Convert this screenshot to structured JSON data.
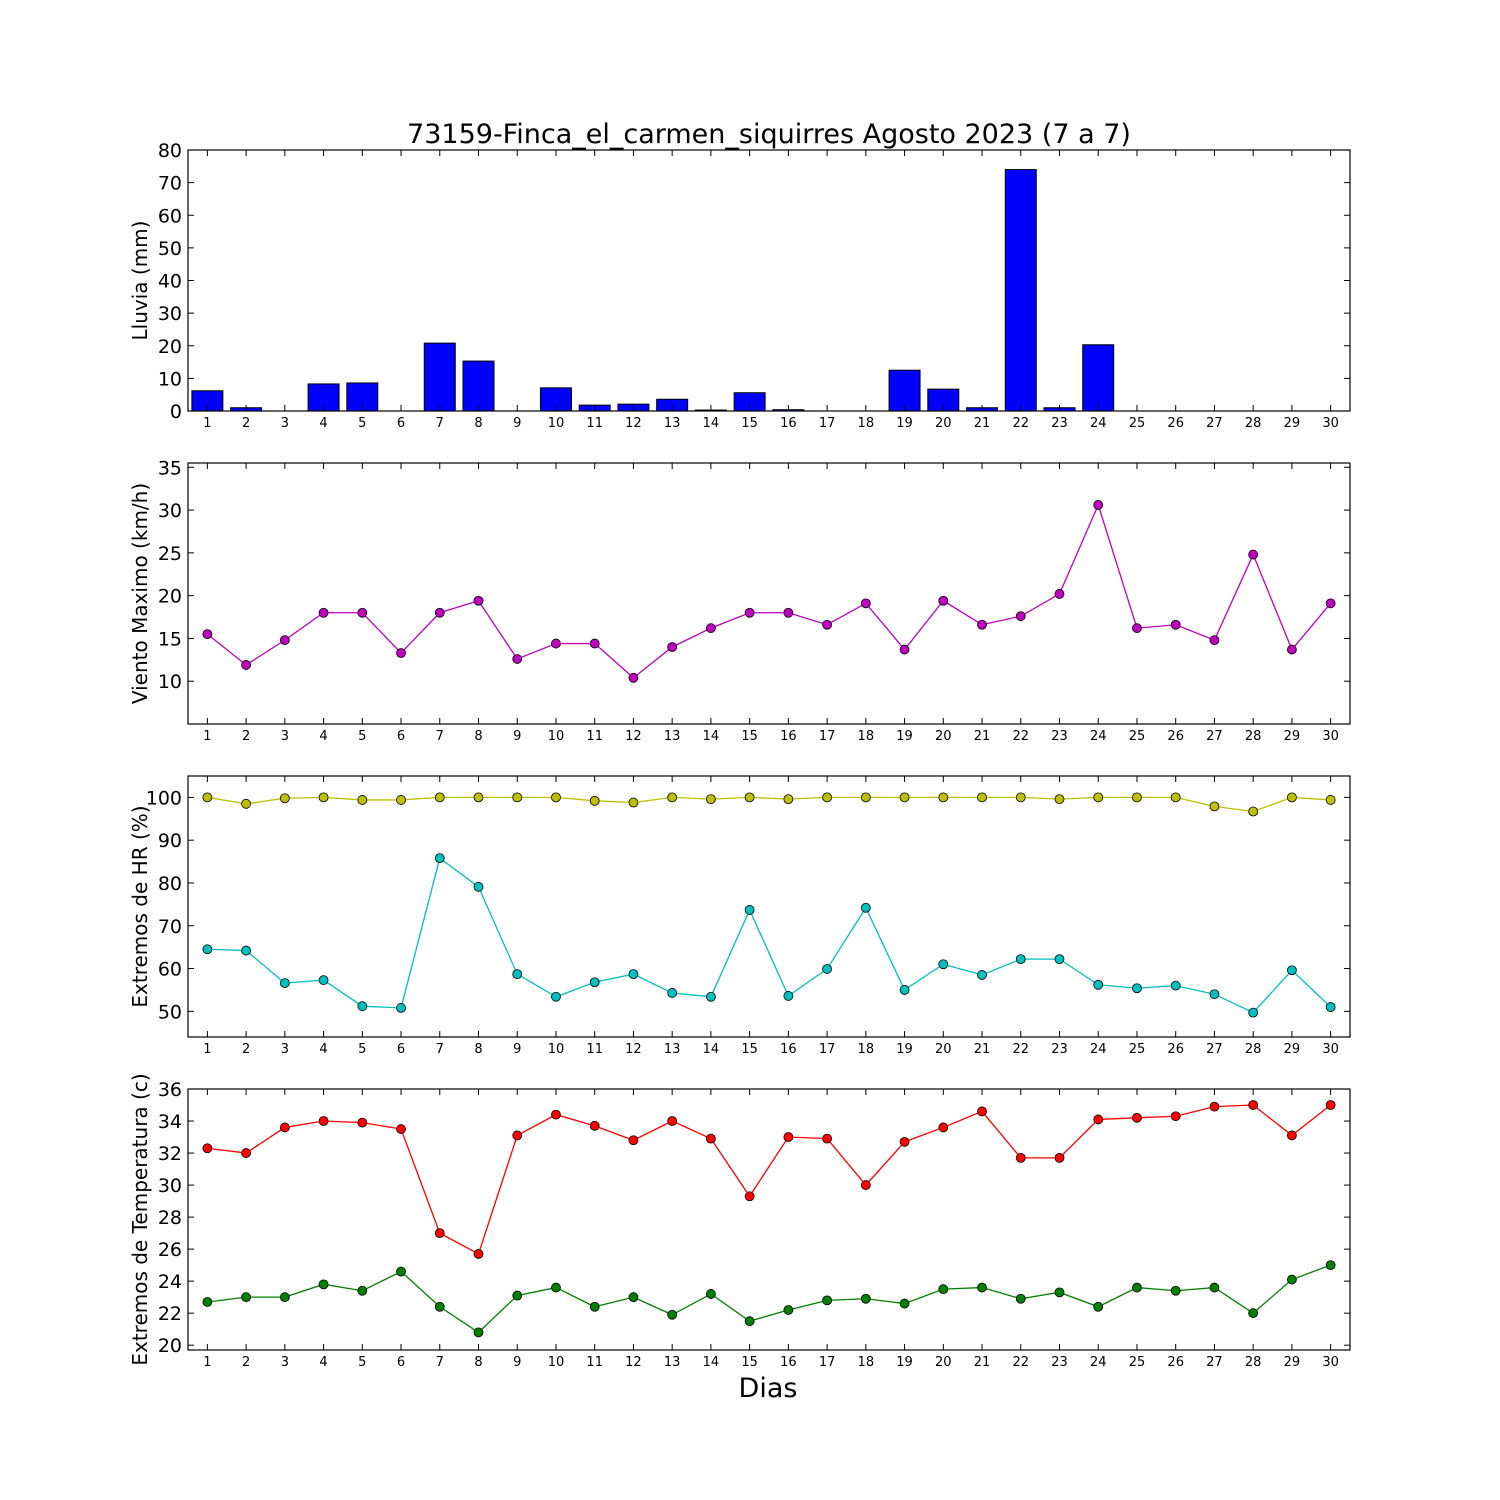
{
  "title": "73159-Finca_el_carmen_siquirres Agosto 2023  (7 a 7)",
  "xlabel": "Dias",
  "chart_data": [
    {
      "type": "bar",
      "ylabel": "Lluvia (mm)",
      "ylim": [
        0,
        80
      ],
      "yticks": [
        0,
        10,
        20,
        30,
        40,
        50,
        60,
        70,
        80
      ],
      "x": [
        1,
        2,
        3,
        4,
        5,
        6,
        7,
        8,
        9,
        10,
        11,
        12,
        13,
        14,
        15,
        16,
        17,
        18,
        19,
        20,
        21,
        22,
        23,
        24,
        25,
        26,
        27,
        28,
        29,
        30
      ],
      "series": [
        {
          "color": "#0000ff",
          "values": [
            6.2,
            1.0,
            0,
            8.3,
            8.6,
            0,
            20.8,
            15.3,
            0,
            7.1,
            1.8,
            2.1,
            3.6,
            0.3,
            5.6,
            0.4,
            0,
            0,
            12.5,
            6.7,
            1.0,
            74.0,
            1.0,
            20.3,
            0,
            0,
            0,
            0,
            0,
            0
          ]
        }
      ]
    },
    {
      "type": "line",
      "ylabel": "Viento Maximo (km/h)",
      "ylim": [
        5,
        35.5
      ],
      "yticks": [
        10,
        15,
        20,
        25,
        30,
        35
      ],
      "x": [
        1,
        2,
        3,
        4,
        5,
        6,
        7,
        8,
        9,
        10,
        11,
        12,
        13,
        14,
        15,
        16,
        17,
        18,
        19,
        20,
        21,
        22,
        23,
        24,
        25,
        26,
        27,
        28,
        29,
        30
      ],
      "series": [
        {
          "color": "#bf00bf",
          "values": [
            15.5,
            11.9,
            14.8,
            18.0,
            18.0,
            13.3,
            18.0,
            19.4,
            12.6,
            14.4,
            14.4,
            10.4,
            14.0,
            16.2,
            18.0,
            18.0,
            16.6,
            19.1,
            13.7,
            19.4,
            16.6,
            17.6,
            20.2,
            30.6,
            16.2,
            16.6,
            14.8,
            24.8,
            13.7,
            19.1
          ]
        }
      ]
    },
    {
      "type": "line",
      "ylabel": "Extremos de HR (%)",
      "ylim": [
        44,
        105
      ],
      "yticks": [
        50,
        60,
        70,
        80,
        90,
        100
      ],
      "x": [
        1,
        2,
        3,
        4,
        5,
        6,
        7,
        8,
        9,
        10,
        11,
        12,
        13,
        14,
        15,
        16,
        17,
        18,
        19,
        20,
        21,
        22,
        23,
        24,
        25,
        26,
        27,
        28,
        29,
        30
      ],
      "series": [
        {
          "color": "#bfbf00",
          "values": [
            100,
            98.5,
            99.8,
            100,
            99.4,
            99.4,
            100,
            100,
            100,
            100,
            99.2,
            98.8,
            100,
            99.6,
            100,
            99.6,
            100,
            100,
            100,
            100,
            100,
            100,
            99.6,
            100,
            100,
            100,
            97.9,
            96.7,
            100,
            99.4
          ]
        },
        {
          "color": "#00bfbf",
          "values": [
            64.5,
            64.2,
            56.6,
            57.3,
            51.2,
            50.8,
            85.8,
            79.1,
            58.7,
            53.4,
            56.8,
            58.7,
            54.3,
            53.4,
            73.7,
            53.6,
            59.9,
            74.2,
            55.0,
            61.0,
            58.5,
            62.2,
            62.2,
            56.2,
            55.4,
            56.0,
            54.0,
            49.7,
            59.6,
            51.0
          ]
        }
      ]
    },
    {
      "type": "line",
      "ylabel": "Extremos de Temperatura (c)",
      "ylim": [
        19.7,
        36
      ],
      "yticks": [
        20,
        22,
        24,
        26,
        28,
        30,
        32,
        34,
        36
      ],
      "x": [
        1,
        2,
        3,
        4,
        5,
        6,
        7,
        8,
        9,
        10,
        11,
        12,
        13,
        14,
        15,
        16,
        17,
        18,
        19,
        20,
        21,
        22,
        23,
        24,
        25,
        26,
        27,
        28,
        29,
        30
      ],
      "series": [
        {
          "color": "#ff0000",
          "values": [
            32.3,
            32.0,
            33.6,
            34.0,
            33.9,
            33.5,
            27.0,
            25.7,
            33.1,
            34.4,
            33.7,
            32.8,
            34.0,
            32.9,
            29.3,
            33.0,
            32.9,
            30.0,
            32.7,
            33.6,
            34.6,
            31.7,
            31.7,
            34.1,
            34.2,
            34.3,
            34.9,
            35.0,
            33.1,
            35.0
          ]
        },
        {
          "color": "#007f00",
          "values": [
            22.7,
            23.0,
            23.0,
            23.8,
            23.4,
            24.6,
            22.4,
            20.8,
            23.1,
            23.6,
            22.4,
            23.0,
            21.9,
            23.2,
            21.5,
            22.2,
            22.8,
            22.9,
            22.6,
            23.5,
            23.6,
            22.9,
            23.3,
            22.4,
            23.6,
            23.4,
            23.6,
            22.0,
            24.1,
            25.0
          ]
        }
      ]
    }
  ]
}
